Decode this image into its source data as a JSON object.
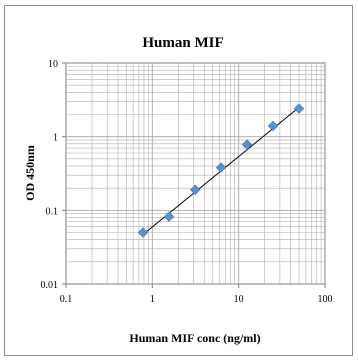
{
  "chart_data": {
    "type": "scatter",
    "title": "Human MIF",
    "xlabel": "Human MIF conc (ng/ml)",
    "ylabel": "OD 450nm",
    "xscale": "log",
    "yscale": "log",
    "xlim": [
      0.1,
      100
    ],
    "ylim": [
      0.01,
      10
    ],
    "xticks": [
      "0.1",
      "1",
      "10",
      "100"
    ],
    "yticks": [
      "0.01",
      "0.1",
      "1",
      "10"
    ],
    "grid": true,
    "legend": "none",
    "marker": "diamond",
    "colors": {
      "points": "#5b8fd0",
      "trendline": "#000000",
      "grid": "#b0b0b0"
    },
    "points": [
      {
        "x": 0.78,
        "y": 0.05
      },
      {
        "x": 1.56,
        "y": 0.082
      },
      {
        "x": 3.13,
        "y": 0.19
      },
      {
        "x": 6.25,
        "y": 0.38
      },
      {
        "x": 12.5,
        "y": 0.78
      },
      {
        "x": 25,
        "y": 1.4
      },
      {
        "x": 50,
        "y": 2.4
      }
    ],
    "trendline": {
      "type": "power",
      "from": [
        0.78,
        0.047
      ],
      "to": [
        50,
        2.5
      ]
    }
  }
}
